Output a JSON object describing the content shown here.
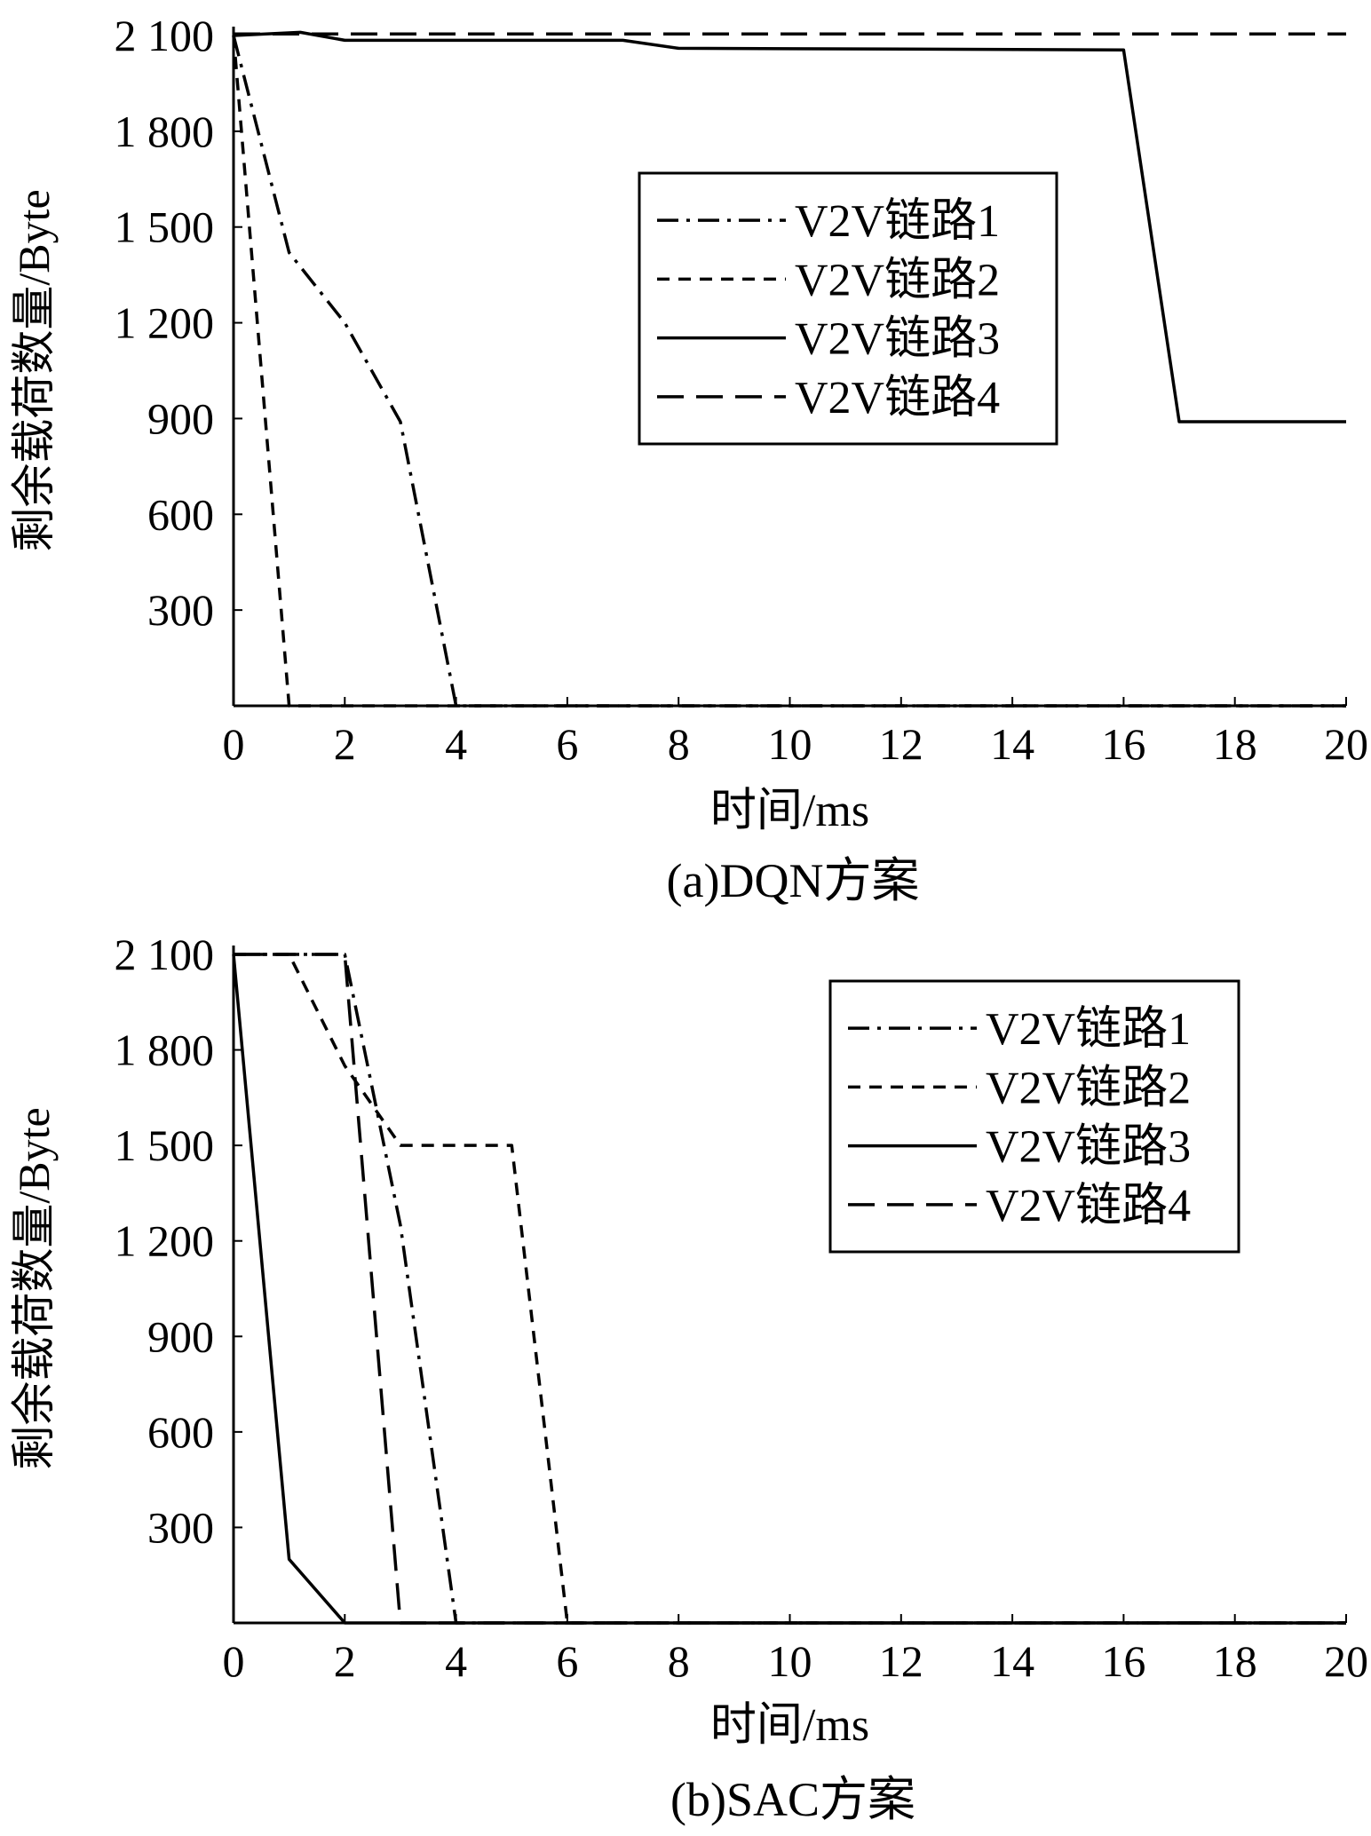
{
  "colors": {
    "line": "#000000",
    "background": "#ffffff"
  },
  "chart_data": [
    {
      "type": "line",
      "caption": "(a)DQN方案",
      "xlabel": "时间/ms",
      "ylabel": "剩余载荷数量/Byte",
      "xlim": [
        0,
        20
      ],
      "ylim": [
        0,
        2100
      ],
      "xticks": [
        0,
        2,
        4,
        6,
        8,
        10,
        12,
        14,
        16,
        18,
        20
      ],
      "xtick_labels": [
        "0",
        "2",
        "4",
        "6",
        "8",
        "10",
        "12",
        "14",
        "16",
        "18",
        "20"
      ],
      "yticks": [
        300,
        600,
        900,
        1200,
        1500,
        1800,
        2100
      ],
      "ytick_labels": [
        "300",
        "600",
        "900",
        "1 200",
        "1 500",
        "1 800",
        "2 100"
      ],
      "grid": false,
      "legend": {
        "position": "upper-right"
      },
      "series": [
        {
          "name": "V2V链路1",
          "dash": "dashdot",
          "x": [
            0,
            1,
            2,
            3,
            4,
            20
          ],
          "y": [
            2100,
            1420,
            1200,
            890,
            0,
            0
          ]
        },
        {
          "name": "V2V链路2",
          "dash": "dotted",
          "x": [
            0,
            1,
            20
          ],
          "y": [
            2100,
            0,
            0
          ]
        },
        {
          "name": "V2V链路3",
          "dash": "solid",
          "x": [
            0,
            1.2,
            2,
            7,
            8,
            16,
            17,
            20
          ],
          "y": [
            2100,
            2110,
            2085,
            2085,
            2060,
            2055,
            890,
            890
          ]
        },
        {
          "name": "V2V链路4",
          "dash": "dashed",
          "x": [
            0,
            20
          ],
          "y": [
            2105,
            2105
          ]
        }
      ]
    },
    {
      "type": "line",
      "caption": "(b)SAC方案",
      "xlabel": "时间/ms",
      "ylabel": "剩余载荷数量/Byte",
      "xlim": [
        0,
        20
      ],
      "ylim": [
        0,
        2100
      ],
      "xticks": [
        0,
        2,
        4,
        6,
        8,
        10,
        12,
        14,
        16,
        18,
        20
      ],
      "xtick_labels": [
        "0",
        "2",
        "4",
        "6",
        "8",
        "10",
        "12",
        "14",
        "16",
        "18",
        "20"
      ],
      "yticks": [
        300,
        600,
        900,
        1200,
        1500,
        1800,
        2100
      ],
      "ytick_labels": [
        "300",
        "600",
        "900",
        "1 200",
        "1 500",
        "1 800",
        "2 100"
      ],
      "grid": false,
      "legend": {
        "position": "upper-right"
      },
      "series": [
        {
          "name": "V2V链路1",
          "dash": "dashdot",
          "x": [
            0,
            1,
            2,
            3,
            4,
            20
          ],
          "y": [
            2100,
            2100,
            2100,
            1250,
            0,
            0
          ]
        },
        {
          "name": "V2V链路2",
          "dash": "dotted",
          "x": [
            0,
            1,
            2,
            3,
            5,
            6,
            20
          ],
          "y": [
            2100,
            2100,
            1750,
            1500,
            1500,
            0,
            0
          ]
        },
        {
          "name": "V2V链路3",
          "dash": "solid",
          "x": [
            0,
            1,
            2,
            20
          ],
          "y": [
            2100,
            200,
            0,
            0
          ]
        },
        {
          "name": "V2V链路4",
          "dash": "dashed",
          "x": [
            0,
            1,
            2,
            3,
            20
          ],
          "y": [
            2100,
            2100,
            2100,
            0,
            0
          ]
        }
      ]
    }
  ]
}
